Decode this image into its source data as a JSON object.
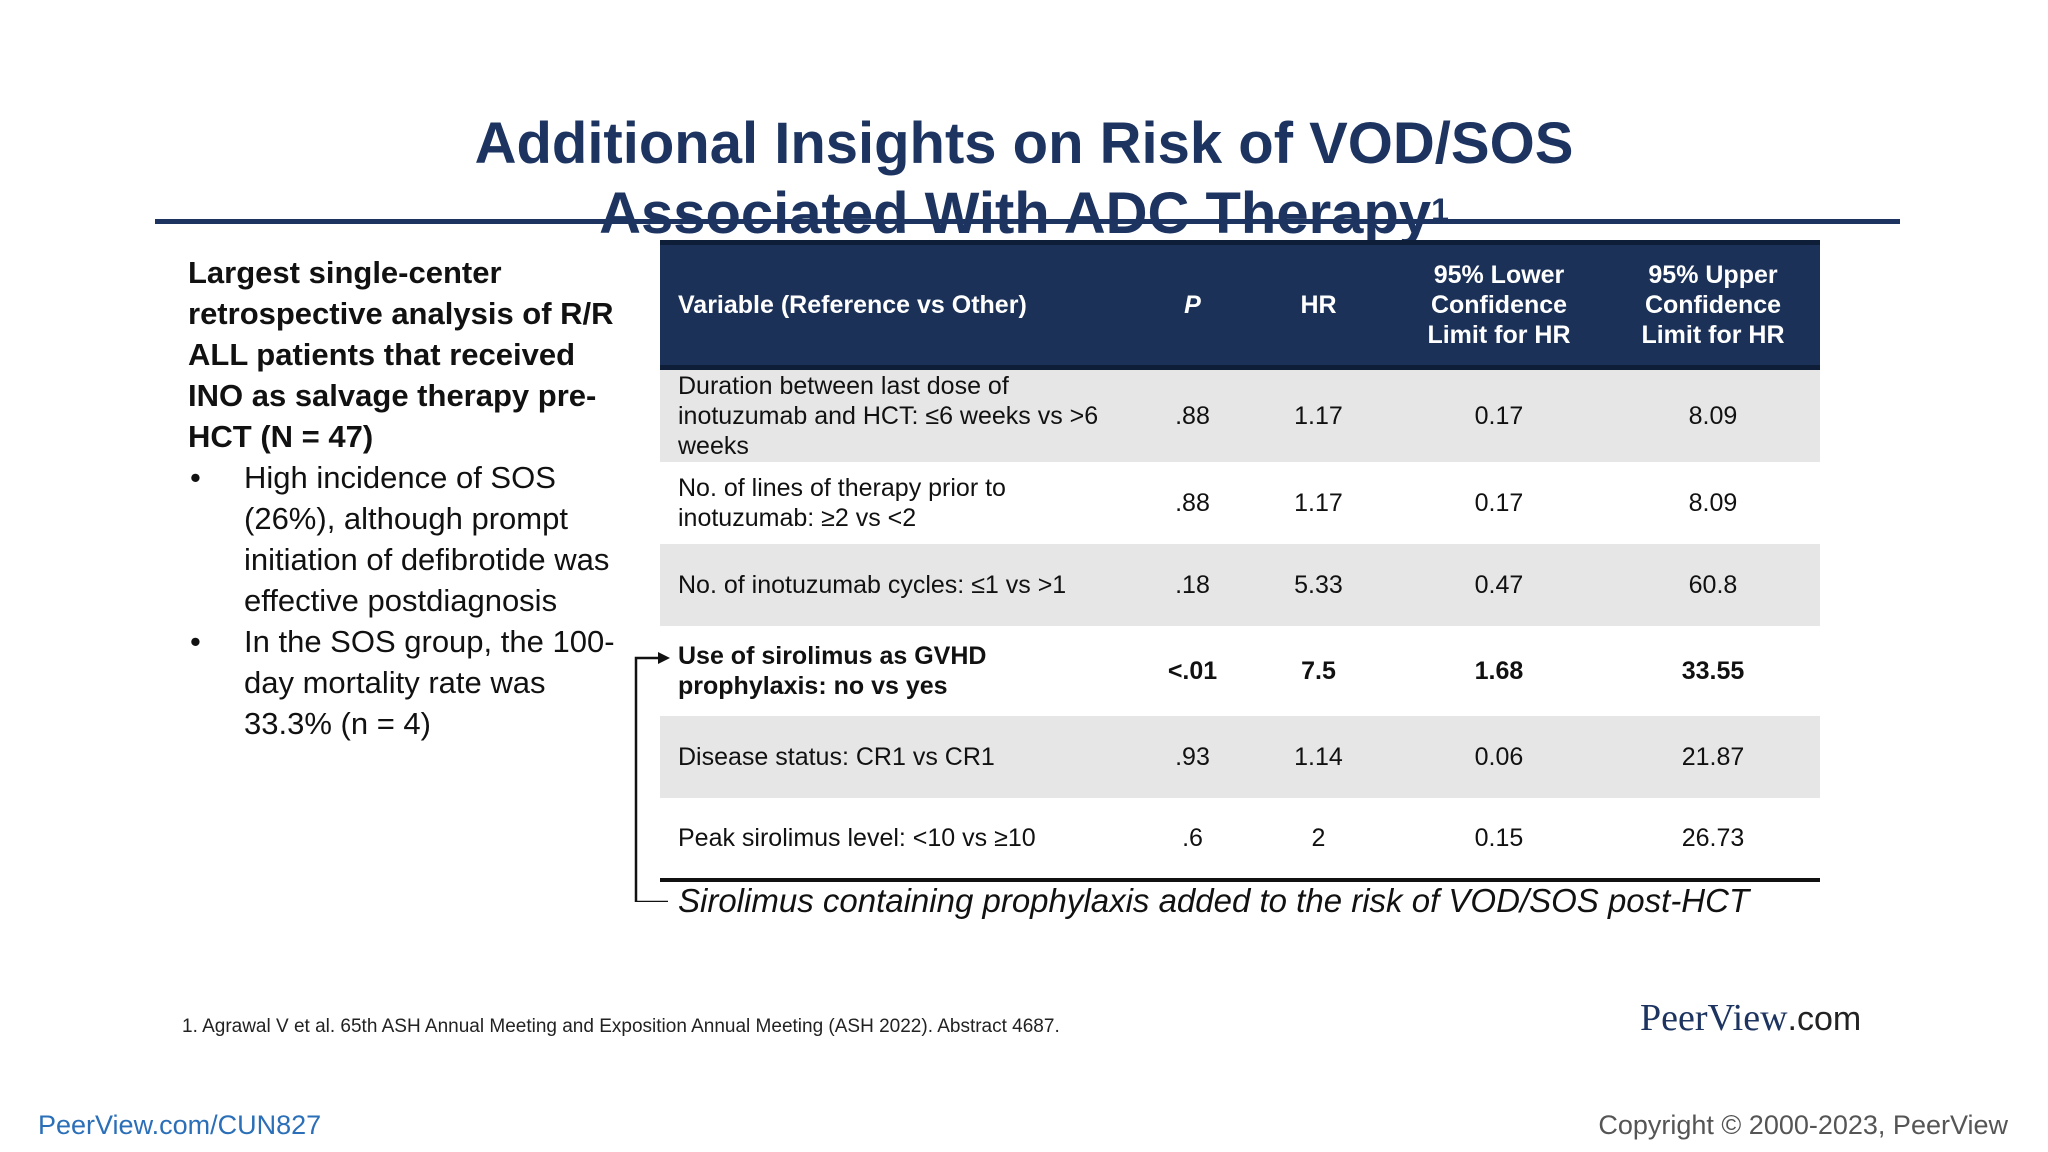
{
  "title": {
    "line1": "Additional Insights on Risk of VOD/SOS",
    "line2": "Associated With ADC Therapy",
    "superscript": "1"
  },
  "summary": "Largest single-center retrospective analysis of R/R ALL patients that received INO as salvage therapy pre-HCT (N = 47)",
  "bullets": [
    "High incidence of SOS (26%), although prompt initiation of defibrotide was effective postdiagnosis",
    "In the SOS group, the 100-day mortality rate was 33.3% (n = 4)"
  ],
  "bullet_glyph": "•",
  "table": {
    "headers": {
      "variable": "Variable (Reference vs Other)",
      "p": "P",
      "hr": "HR",
      "lower": "95% Lower Confidence Limit for HR",
      "upper": "95% Upper Confidence Limit for HR"
    },
    "rows": [
      {
        "variable": "Duration between last dose of inotuzumab and HCT: ≤6 weeks vs >6 weeks",
        "p": ".88",
        "hr": "1.17",
        "lower": "0.17",
        "upper": "8.09",
        "bold": false
      },
      {
        "variable": "No. of lines of therapy prior to inotuzumab: ≥2 vs <2",
        "p": ".88",
        "hr": "1.17",
        "lower": "0.17",
        "upper": "8.09",
        "bold": false
      },
      {
        "variable": "No. of inotuzumab cycles: ≤1 vs >1",
        "p": ".18",
        "hr": "5.33",
        "lower": "0.47",
        "upper": "60.8",
        "bold": false
      },
      {
        "variable": "Use of sirolimus as GVHD prophylaxis: no vs yes",
        "p": "<.01",
        "hr": "7.5",
        "lower": "1.68",
        "upper": "33.55",
        "bold": true
      },
      {
        "variable": "Disease status: CR1 vs CR1",
        "p": ".93",
        "hr": "1.14",
        "lower": "0.06",
        "upper": "21.87",
        "bold": false
      },
      {
        "variable": "Peak sirolimus level: <10 vs ≥10",
        "p": ".6",
        "hr": "2",
        "lower": "0.15",
        "upper": "26.73",
        "bold": false
      }
    ]
  },
  "callout": "Sirolimus containing prophylaxis added to the risk of VOD/SOS post-HCT",
  "footnote": "1. Agrawal V et al. 65th ASH Annual Meeting and Exposition Annual Meeting (ASH 2022). Abstract 4687.",
  "logo": {
    "name": "PeerView",
    "suffix": ".com"
  },
  "footer": {
    "link": "PeerView.com/CUN827",
    "copyright": "Copyright © 2000-2023, PeerView"
  },
  "colors": {
    "title": "#1d3461",
    "header_bg": "#1b3158",
    "row_alt": "#e6e6e6",
    "link": "#2b6fb8"
  }
}
